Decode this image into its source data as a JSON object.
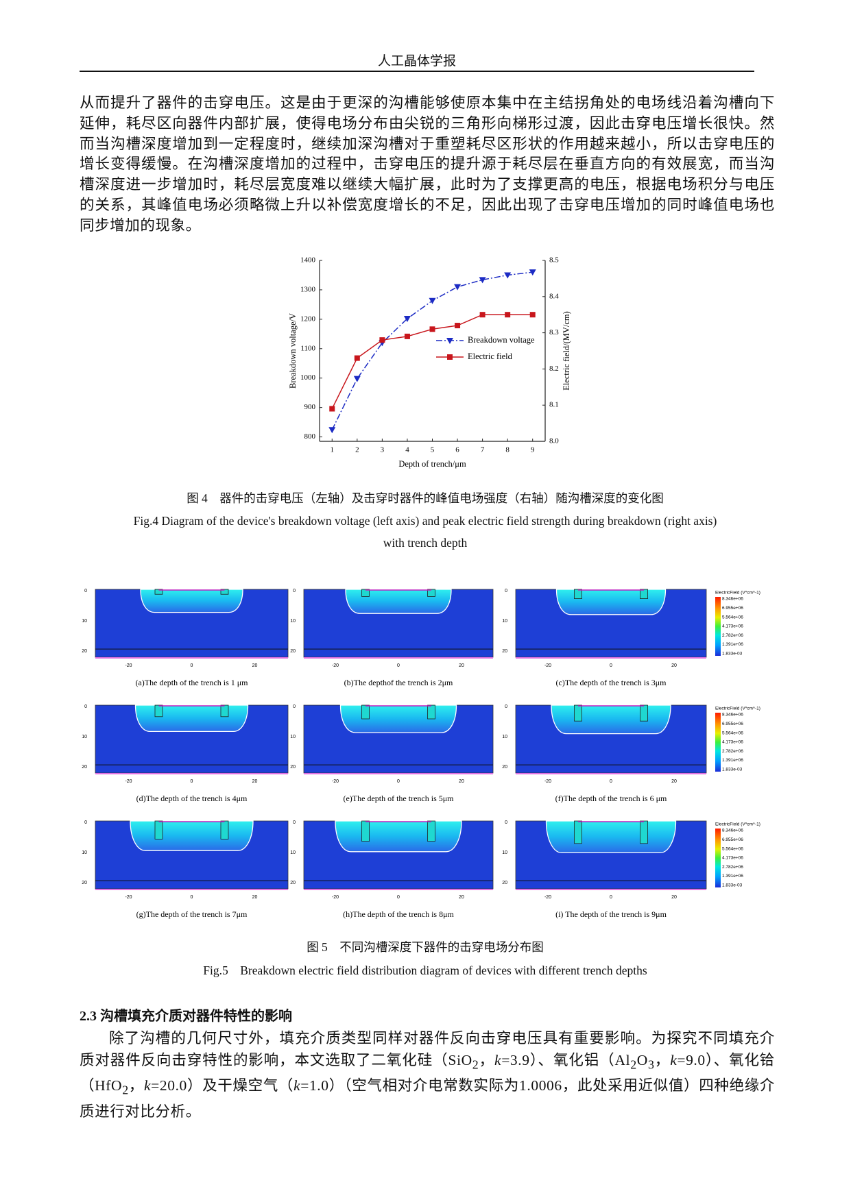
{
  "header": {
    "title": "人工晶体学报"
  },
  "paragraph1": "从而提升了器件的击穿电压。这是由于更深的沟槽能够使原本集中在主结拐角处的电场线沿着沟槽向下延伸，耗尽区向器件内部扩展，使得电场分布由尖锐的三角形向梯形过渡，因此击穿电压增长很快。然而当沟槽深度增加到一定程度时，继续加深沟槽对于重塑耗尽区形状的作用越来越小，所以击穿电压的增长变得缓慢。在沟槽深度增加的过程中，击穿电压的提升源于耗尽层在垂直方向的有效展宽，而当沟槽深度进一步增加时，耗尽层宽度难以继续大幅扩展，此时为了支撑更高的电压，根据电场积分与电压的关系，其峰值电场必须略微上升以补偿宽度增长的不足，因此出现了击穿电压增加的同时峰值电场也同步增加的现象。",
  "chart_data": {
    "type": "line",
    "xlabel": "Depth of trench/μm",
    "ylabel": "Breakdown voltage/V",
    "y2label": "Electric field/(MV/cm)",
    "x": [
      1,
      2,
      3,
      4,
      5,
      6,
      7,
      8,
      9
    ],
    "xlim": [
      0.5,
      9.5
    ],
    "xticks": [
      1,
      2,
      3,
      4,
      5,
      6,
      7,
      8,
      9
    ],
    "ylim": [
      785,
      1400
    ],
    "yticks": [
      800,
      900,
      1000,
      1100,
      1200,
      1300,
      1400
    ],
    "y2lim": [
      8,
      8.5
    ],
    "y2ticks": [
      {
        "value": 8,
        "label": "8.0"
      },
      8.1,
      8.2,
      8.3,
      8.4,
      8.5
    ],
    "series": [
      {
        "name": "Breakdown voltage",
        "color": "#1c2bc4",
        "marker": "triangle-down",
        "line_style": "dashdot",
        "values": [
          824,
          998,
          1120,
          1202,
          1263,
          1310,
          1334,
          1350,
          1360
        ]
      },
      {
        "name": "Electric field",
        "color": "#c8161c",
        "marker": "square",
        "line_style": "solid",
        "axis": "y2",
        "values": [
          8.09,
          8.23,
          8.28,
          8.29,
          8.31,
          8.32,
          8.35,
          8.35,
          8.35
        ]
      }
    ]
  },
  "figure4": {
    "caption_cn": "图 4　器件的击穿电压（左轴）及击穿时器件的峰值电场强度（右轴）随沟槽深度的变化图",
    "caption_en": "Fig.4 Diagram of the device's breakdown voltage (left axis) and peak electric field strength during breakdown (right axis) with trench depth"
  },
  "figure5": {
    "panel_axes": {
      "yticks": [
        0,
        10,
        20
      ],
      "xticks": [
        -20,
        0,
        20
      ]
    },
    "colorbar": {
      "title": "ElectricField (V*cm^-1)",
      "labels": [
        "8.346e+06",
        "6.955e+06",
        "5.564e+06",
        "4.173e+06",
        "2.782e+06",
        "1.391e+06",
        "1.833e-03"
      ]
    },
    "panels": [
      "(a)The depth of the trench is 1 μm",
      "(b)The depthof the trench is 2μm",
      "(c)The depth of the trench is 3μm",
      "(d)The depth of the trench is 4μm",
      "(e)The depth of the trench is 5μm",
      "(f)The depth of the trench is 6 μm",
      "(g)The depth of the trench is 7μm",
      "(h)The depth of the trench is 8μm",
      "(i) The depth of the trench is 9μm"
    ],
    "caption_cn": "图 5　不同沟槽深度下器件的击穿电场分布图",
    "caption_en": "Fig.5　Breakdown electric field distribution diagram of devices with different trench depths"
  },
  "section": {
    "heading": "2.3 沟槽填充介质对器件特性的影响",
    "paragraph": [
      "除了沟槽的几何尺寸外，填充介质类型同样对器件反向击穿电压具有重要影响。为探究不同填充介质对器件反向击穿特性的影响，本文选取了二氧化硅（SiO",
      "2",
      "，",
      "k",
      "=3.9）、氧化铝（Al",
      "2",
      "O",
      "3",
      "，",
      "k",
      "=9.0）、氧化铪（HfO",
      "2",
      "，",
      "k",
      "=20.0）及干燥空气（",
      "k",
      "=1.0）（空气相对介电常数实际为1.0006，此处采用近似值）四种绝缘介质进行对比分析。"
    ]
  }
}
